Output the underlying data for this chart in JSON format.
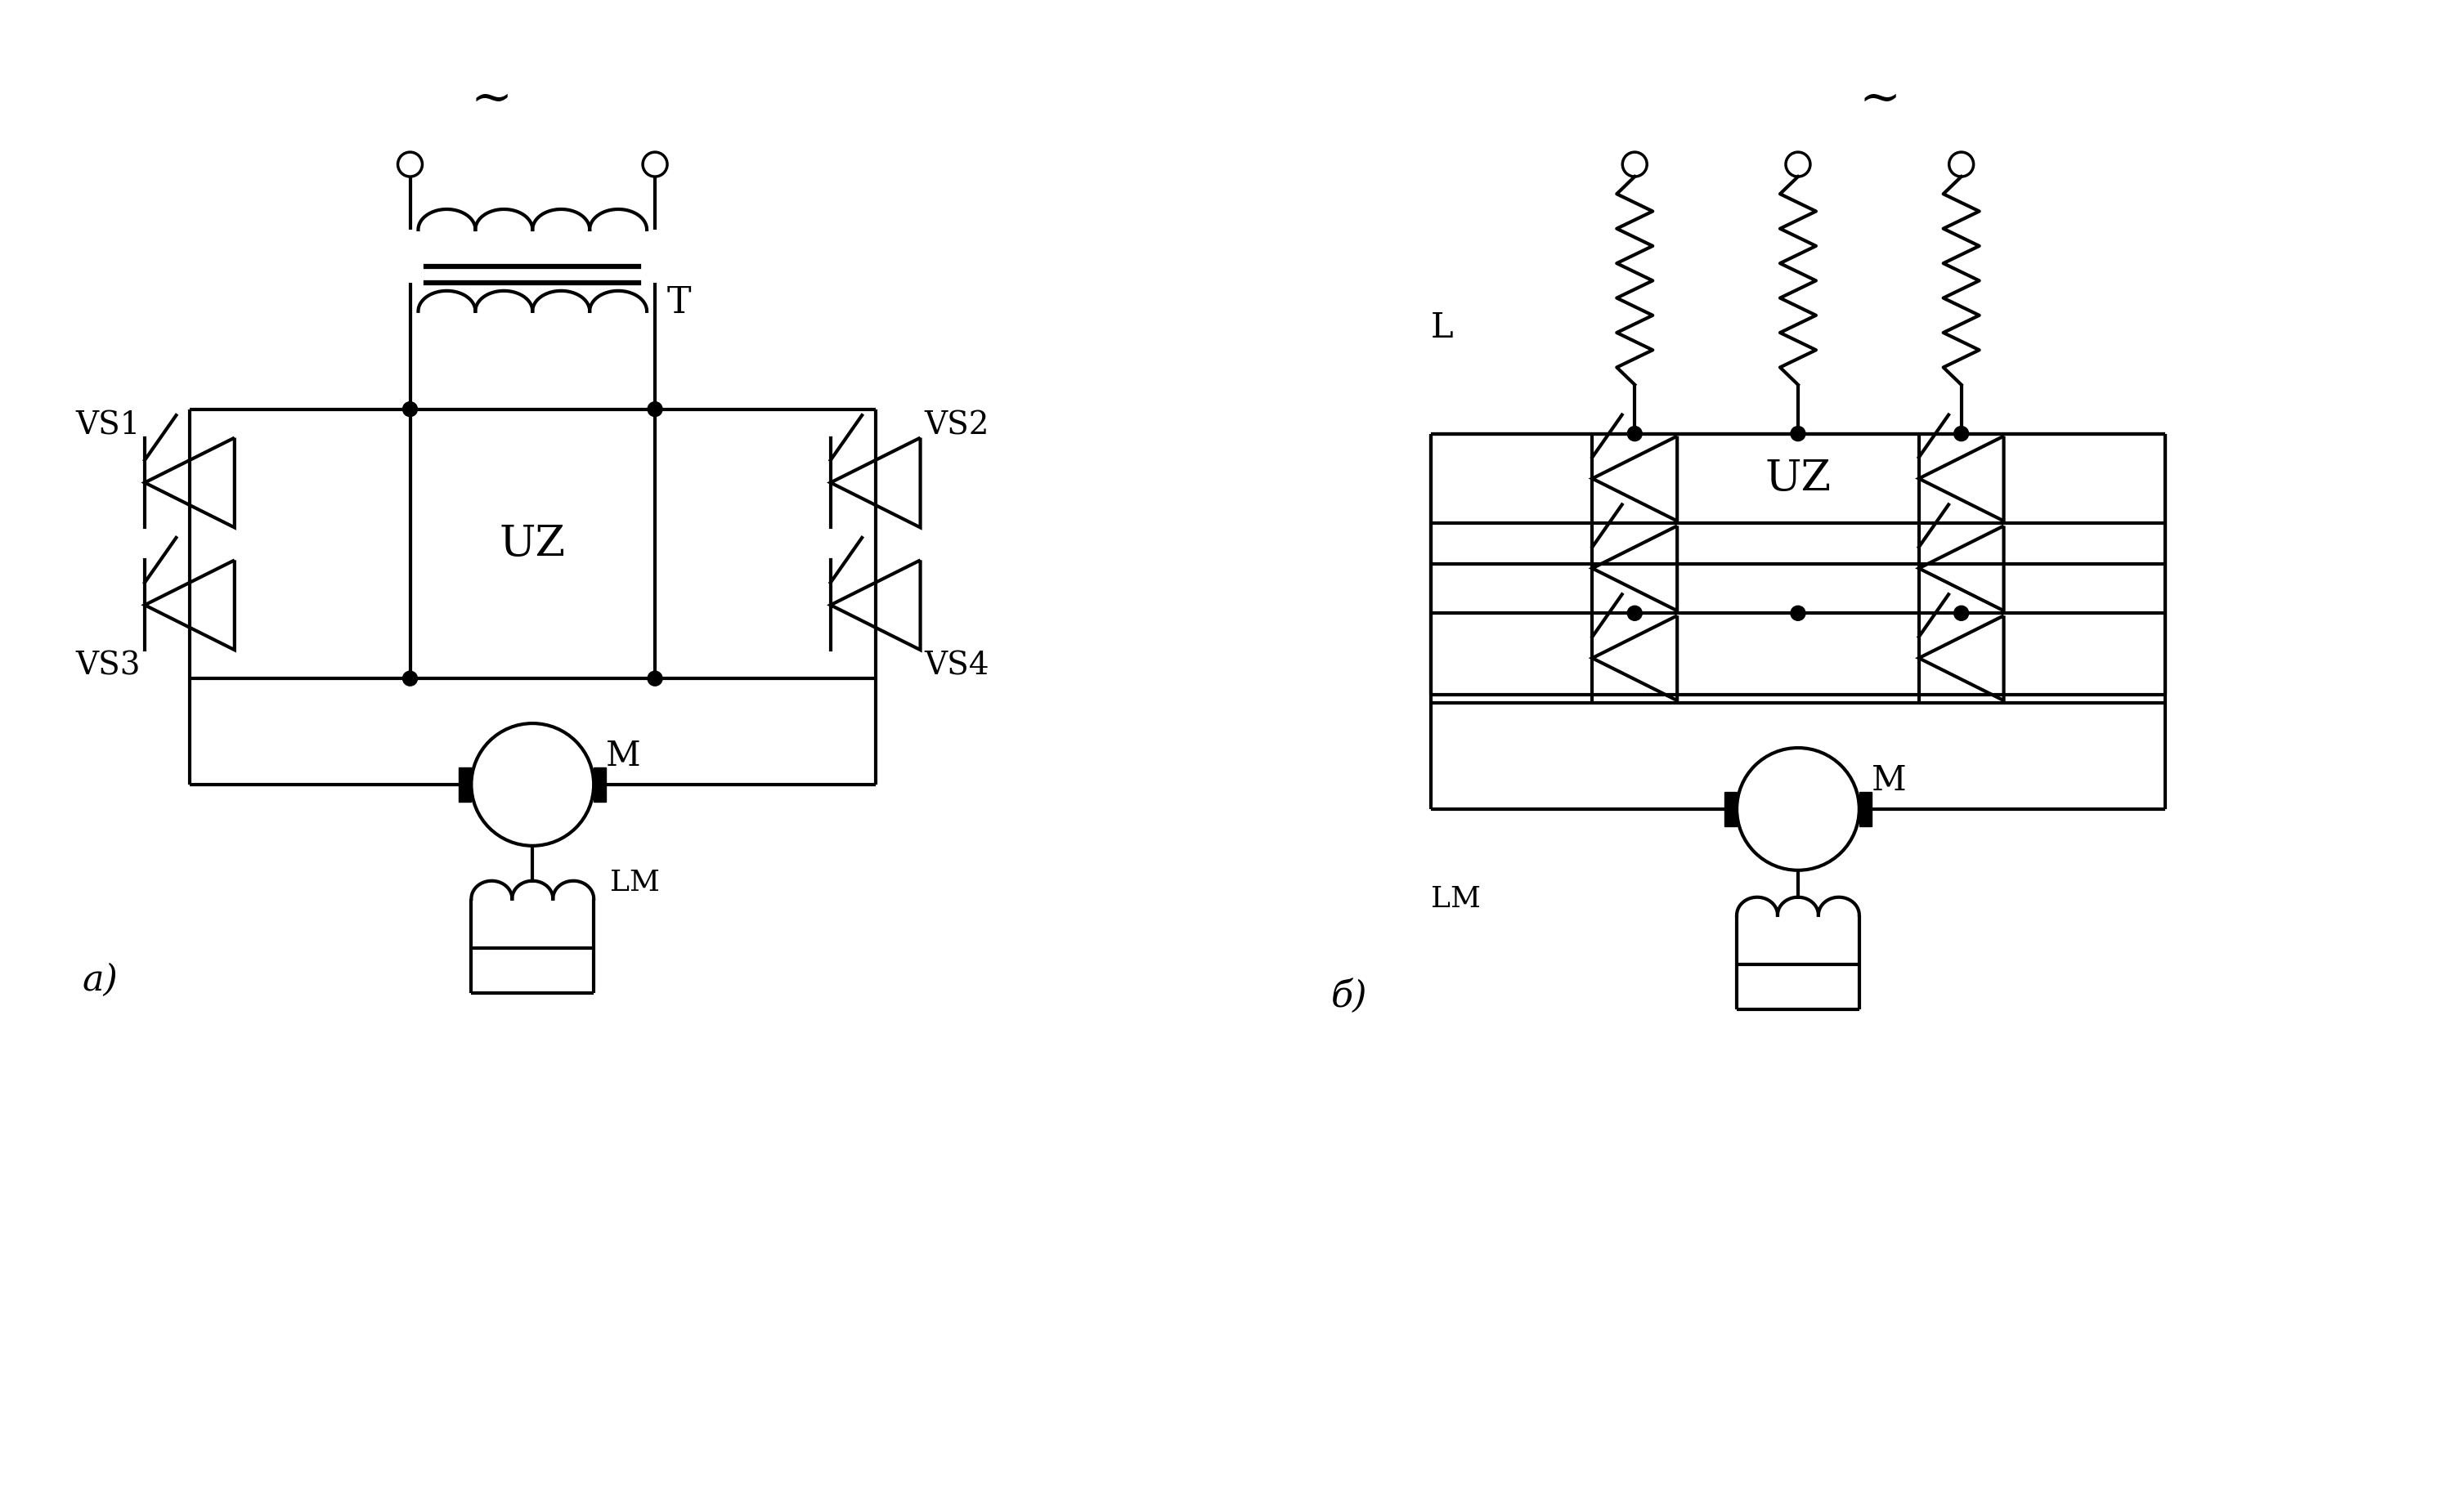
{
  "bg_color": "#ffffff",
  "lw": 3.0,
  "fig_w": 30,
  "fig_h": 18.5,
  "tilde": "~",
  "label_T": "T",
  "label_UZ_a": "UZ",
  "label_UZ_b": "UZ",
  "label_VS1": "VS1",
  "label_VS2": "VS2",
  "label_VS3": "VS3",
  "label_VS4": "VS4",
  "label_M_a": "M",
  "label_M_b": "M",
  "label_LM_a": "LM",
  "label_LM_b": "LM",
  "label_L": "L",
  "label_a": "a)",
  "label_b": "б)"
}
